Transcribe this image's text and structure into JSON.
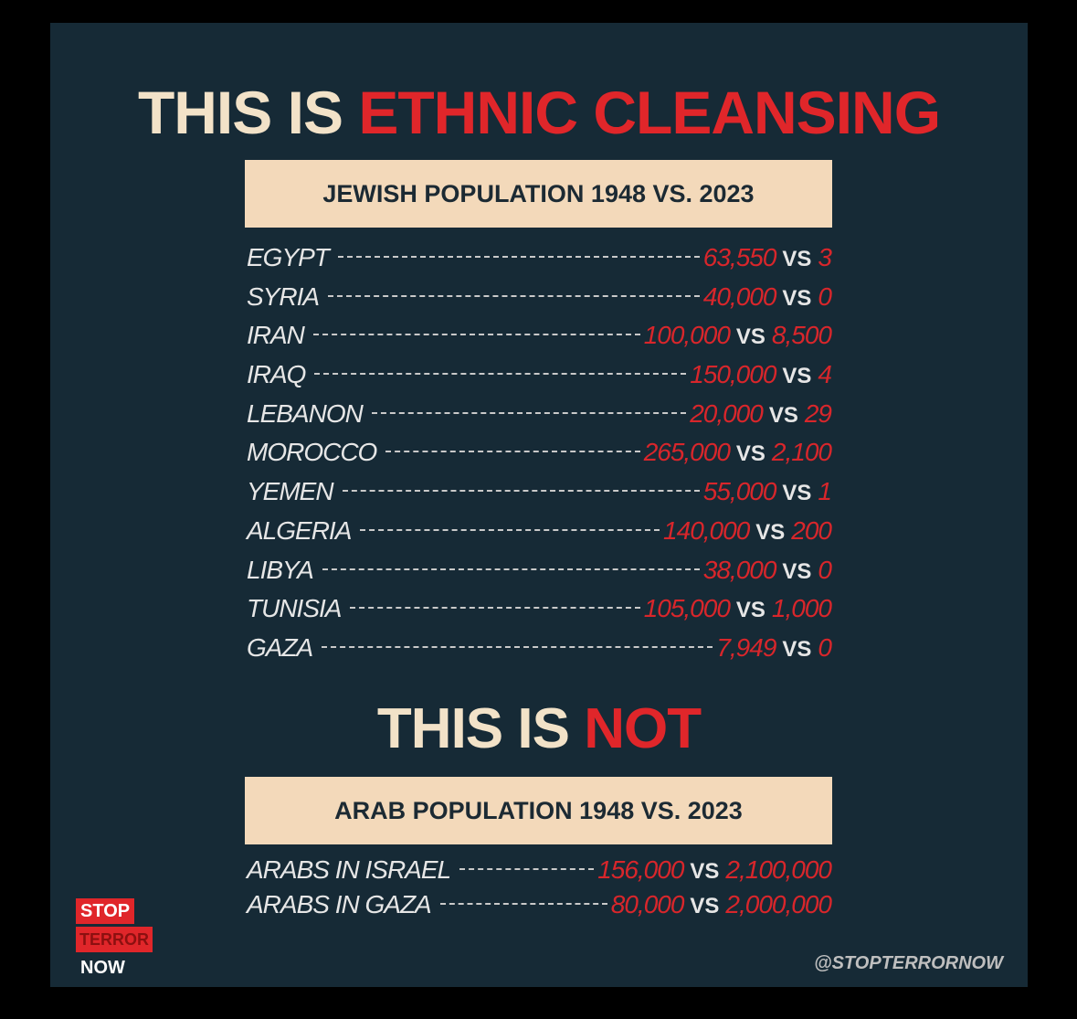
{
  "headline_top": {
    "lead": "THIS IS",
    "accent": "ETHNIC CLEANSING"
  },
  "section_jewish": {
    "banner": "JEWISH POPULATION 1948 VS. 2023",
    "vs": "VS",
    "rows": [
      {
        "country": "EGYPT",
        "v1948": "63,550",
        "v2023": "3"
      },
      {
        "country": "SYRIA",
        "v1948": "40,000",
        "v2023": "0"
      },
      {
        "country": "IRAN",
        "v1948": "100,000",
        "v2023": "8,500"
      },
      {
        "country": "IRAQ",
        "v1948": "150,000",
        "v2023": "4"
      },
      {
        "country": "LEBANON",
        "v1948": "20,000",
        "v2023": "29"
      },
      {
        "country": "MOROCCO",
        "v1948": "265,000",
        "v2023": "2,100"
      },
      {
        "country": "YEMEN",
        "v1948": "55,000",
        "v2023": "1"
      },
      {
        "country": "ALGERIA",
        "v1948": "140,000",
        "v2023": "200"
      },
      {
        "country": "LIBYA",
        "v1948": "38,000",
        "v2023": "0"
      },
      {
        "country": "TUNISIA",
        "v1948": "105,000",
        "v2023": "1,000"
      },
      {
        "country": "GAZA",
        "v1948": "7,949",
        "v2023": "0"
      }
    ]
  },
  "headline_mid": {
    "lead": "THIS IS",
    "accent": "NOT"
  },
  "section_arab": {
    "banner": "ARAB POPULATION 1948 VS. 2023",
    "vs": "VS",
    "rows": [
      {
        "country": "ARABS IN ISRAEL",
        "v1948": "156,000",
        "v2023": "2,100,000"
      },
      {
        "country": "ARABS IN GAZA",
        "v1948": "80,000",
        "v2023": "2,000,000"
      }
    ]
  },
  "logo": {
    "line1": "STOP",
    "line2": "TERROR",
    "line3": "NOW"
  },
  "handle": "@STOPTERRORNOW",
  "colors": {
    "panel": "#162a36",
    "accent_red": "#e0262a",
    "banner": "#f3d9ba",
    "headline_cream": "#f2e2c8"
  }
}
